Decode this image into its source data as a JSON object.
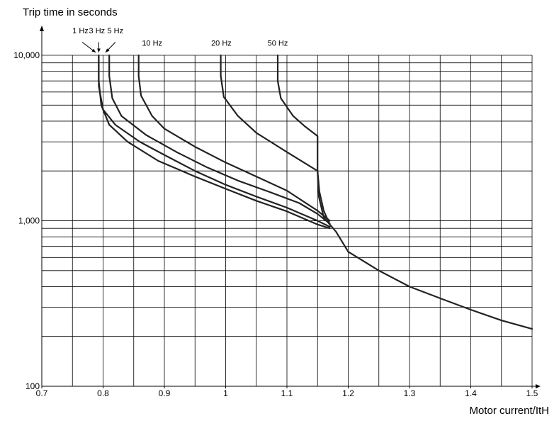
{
  "chart_data": {
    "type": "line",
    "title": "",
    "ylabel": "Trip time in seconds",
    "xlabel": "Motor current/ItH",
    "xlim": [
      0.7,
      1.5
    ],
    "ylim": [
      100,
      10000
    ],
    "y_scale": "log",
    "grid": true,
    "legend": "none",
    "x_ticks": [
      0.7,
      0.8,
      0.9,
      1.0,
      1.1,
      1.2,
      1.3,
      1.4,
      1.5
    ],
    "x_tick_labels": [
      "0.7",
      "0.8",
      "0.9",
      "1",
      "1.1",
      "1.2",
      "1.3",
      "1.4",
      "1.5"
    ],
    "y_tick_labels": [
      "100",
      "1,000",
      "10,000"
    ],
    "y_ticks": [
      100,
      1000,
      10000
    ],
    "line_color": "#222222",
    "series": [
      {
        "name": "1 Hz",
        "points": [
          [
            0.793,
            10000
          ],
          [
            0.793,
            7000
          ],
          [
            0.797,
            5000
          ],
          [
            0.81,
            3800
          ],
          [
            0.84,
            3000
          ],
          [
            0.89,
            2300
          ],
          [
            0.95,
            1850
          ],
          [
            1.0,
            1560
          ],
          [
            1.05,
            1320
          ],
          [
            1.1,
            1140
          ],
          [
            1.15,
            950
          ],
          [
            1.17,
            900
          ]
        ]
      },
      {
        "name": "3 Hz",
        "points": [
          [
            0.793,
            10000
          ],
          [
            0.793,
            6500
          ],
          [
            0.8,
            4700
          ],
          [
            0.82,
            3800
          ],
          [
            0.86,
            3000
          ],
          [
            0.9,
            2500
          ],
          [
            0.95,
            2000
          ],
          [
            1.0,
            1650
          ],
          [
            1.05,
            1400
          ],
          [
            1.1,
            1200
          ],
          [
            1.15,
            1000
          ],
          [
            1.17,
            920
          ]
        ]
      },
      {
        "name": "5 Hz",
        "points": [
          [
            0.81,
            10000
          ],
          [
            0.81,
            7500
          ],
          [
            0.815,
            5500
          ],
          [
            0.83,
            4300
          ],
          [
            0.87,
            3300
          ],
          [
            0.92,
            2600
          ],
          [
            0.97,
            2100
          ],
          [
            1.02,
            1750
          ],
          [
            1.07,
            1500
          ],
          [
            1.12,
            1280
          ],
          [
            1.15,
            1100
          ],
          [
            1.17,
            960
          ]
        ]
      },
      {
        "name": "10 Hz",
        "points": [
          [
            0.858,
            10000
          ],
          [
            0.858,
            7500
          ],
          [
            0.862,
            5700
          ],
          [
            0.88,
            4300
          ],
          [
            0.9,
            3600
          ],
          [
            0.95,
            2800
          ],
          [
            1.0,
            2250
          ],
          [
            1.05,
            1850
          ],
          [
            1.1,
            1520
          ],
          [
            1.15,
            1150
          ],
          [
            1.17,
            1000
          ]
        ]
      },
      {
        "name": "20 Hz",
        "points": [
          [
            0.992,
            10000
          ],
          [
            0.992,
            7500
          ],
          [
            0.997,
            5600
          ],
          [
            1.02,
            4300
          ],
          [
            1.05,
            3400
          ],
          [
            1.1,
            2600
          ],
          [
            1.15,
            2000
          ],
          [
            1.153,
            1500
          ],
          [
            1.16,
            1150
          ],
          [
            1.17,
            950
          ]
        ]
      },
      {
        "name": "50 Hz",
        "points": [
          [
            1.085,
            10000
          ],
          [
            1.085,
            7000
          ],
          [
            1.09,
            5500
          ],
          [
            1.11,
            4300
          ],
          [
            1.13,
            3700
          ],
          [
            1.15,
            3250
          ],
          [
            1.15,
            2000
          ],
          [
            1.152,
            1400
          ],
          [
            1.16,
            1050
          ],
          [
            1.18,
            860
          ],
          [
            1.2,
            650
          ],
          [
            1.25,
            500
          ],
          [
            1.3,
            400
          ],
          [
            1.35,
            340
          ],
          [
            1.4,
            290
          ],
          [
            1.45,
            250
          ],
          [
            1.5,
            222
          ]
        ]
      }
    ],
    "annotations": [
      {
        "text": "1 Hz",
        "x": 0.763,
        "y": 13600
      },
      {
        "text": "3 Hz",
        "x": 0.79,
        "y": 13600
      },
      {
        "text": "5 Hz",
        "x": 0.82,
        "y": 13600
      },
      {
        "text": "10 Hz",
        "x": 0.88,
        "y": 11400
      },
      {
        "text": "20 Hz",
        "x": 0.993,
        "y": 11400
      },
      {
        "text": "50 Hz",
        "x": 1.085,
        "y": 11400
      }
    ]
  }
}
